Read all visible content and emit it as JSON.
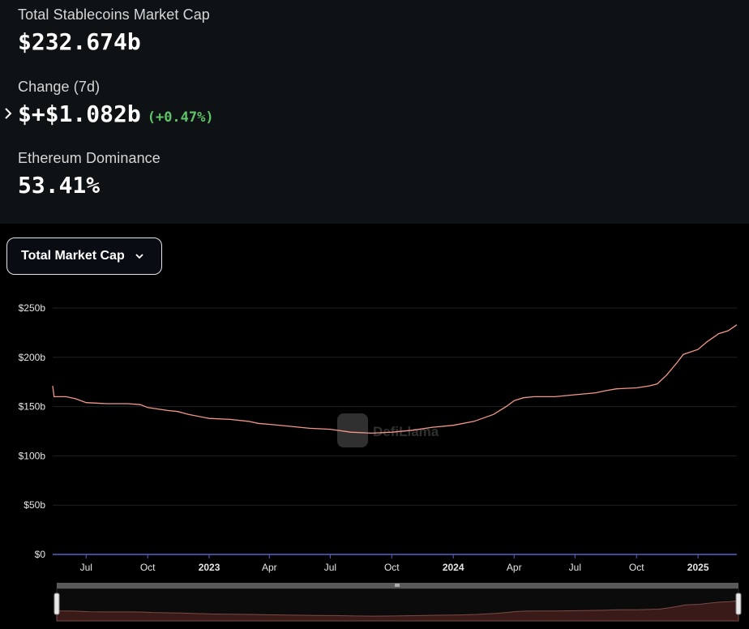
{
  "stats": {
    "market_cap": {
      "label": "Total Stablecoins Market Cap",
      "value": "$232.674b"
    },
    "change_7d": {
      "label": "Change (7d)",
      "value": "$+$1.082b",
      "percent": "(+0.47%)"
    },
    "eth_dominance": {
      "label": "Ethereum Dominance",
      "value": "53.41%"
    }
  },
  "dropdown": {
    "label": "Total Market Cap"
  },
  "watermark": "DefiLlama",
  "colors": {
    "line": "#f2988a",
    "change_positive": "#5fc36a",
    "axis": "#5a5fc8"
  },
  "chart_data": {
    "type": "line",
    "title": "",
    "xlabel": "",
    "ylabel": "",
    "ylim": [
      0,
      250
    ],
    "y_unit": "billion USD",
    "y_ticks": [
      {
        "value": 0,
        "label": "$0"
      },
      {
        "value": 50,
        "label": "$50b"
      },
      {
        "value": 100,
        "label": "$100b"
      },
      {
        "value": 150,
        "label": "$150b"
      },
      {
        "value": 200,
        "label": "$200b"
      },
      {
        "value": 250,
        "label": "$250b"
      }
    ],
    "x_range": [
      "2022-05-12",
      "2025-02-28"
    ],
    "x_ticks": [
      {
        "date": "2022-07-01",
        "label": "Jul",
        "bold": false
      },
      {
        "date": "2022-10-01",
        "label": "Oct",
        "bold": false
      },
      {
        "date": "2023-01-01",
        "label": "2023",
        "bold": true
      },
      {
        "date": "2023-04-01",
        "label": "Apr",
        "bold": false
      },
      {
        "date": "2023-07-01",
        "label": "Jul",
        "bold": false
      },
      {
        "date": "2023-10-01",
        "label": "Oct",
        "bold": false
      },
      {
        "date": "2024-01-01",
        "label": "2024",
        "bold": true
      },
      {
        "date": "2024-04-01",
        "label": "Apr",
        "bold": false
      },
      {
        "date": "2024-07-01",
        "label": "Jul",
        "bold": false
      },
      {
        "date": "2024-10-01",
        "label": "Oct",
        "bold": false
      },
      {
        "date": "2025-01-01",
        "label": "2025",
        "bold": true
      }
    ],
    "grid": true,
    "legend": "none",
    "series": [
      {
        "points": [
          [
            "2022-05-12",
            171
          ],
          [
            "2022-05-14",
            160
          ],
          [
            "2022-06-01",
            160
          ],
          [
            "2022-06-15",
            158
          ],
          [
            "2022-07-01",
            154
          ],
          [
            "2022-08-01",
            153
          ],
          [
            "2022-09-01",
            153
          ],
          [
            "2022-09-20",
            152
          ],
          [
            "2022-10-01",
            149
          ],
          [
            "2022-11-01",
            146
          ],
          [
            "2022-11-15",
            145
          ],
          [
            "2022-12-01",
            142
          ],
          [
            "2023-01-01",
            138
          ],
          [
            "2023-02-01",
            137
          ],
          [
            "2023-03-01",
            135
          ],
          [
            "2023-03-15",
            133
          ],
          [
            "2023-04-01",
            132
          ],
          [
            "2023-05-01",
            130
          ],
          [
            "2023-06-01",
            128
          ],
          [
            "2023-07-01",
            127
          ],
          [
            "2023-08-01",
            124
          ],
          [
            "2023-09-01",
            123
          ],
          [
            "2023-10-01",
            124
          ],
          [
            "2023-11-01",
            126
          ],
          [
            "2023-12-01",
            129
          ],
          [
            "2024-01-01",
            131
          ],
          [
            "2024-02-01",
            135
          ],
          [
            "2024-03-01",
            142
          ],
          [
            "2024-03-20",
            150
          ],
          [
            "2024-04-01",
            156
          ],
          [
            "2024-04-15",
            159
          ],
          [
            "2024-05-01",
            160
          ],
          [
            "2024-06-01",
            160
          ],
          [
            "2024-07-01",
            162
          ],
          [
            "2024-08-01",
            164
          ],
          [
            "2024-08-15",
            166
          ],
          [
            "2024-09-01",
            168
          ],
          [
            "2024-10-01",
            169
          ],
          [
            "2024-10-20",
            171
          ],
          [
            "2024-11-01",
            173
          ],
          [
            "2024-11-15",
            182
          ],
          [
            "2024-12-01",
            195
          ],
          [
            "2024-12-10",
            203
          ],
          [
            "2025-01-01",
            208
          ],
          [
            "2025-01-15",
            216
          ],
          [
            "2025-02-01",
            224
          ],
          [
            "2025-02-15",
            227
          ],
          [
            "2025-02-28",
            233
          ]
        ]
      }
    ]
  }
}
